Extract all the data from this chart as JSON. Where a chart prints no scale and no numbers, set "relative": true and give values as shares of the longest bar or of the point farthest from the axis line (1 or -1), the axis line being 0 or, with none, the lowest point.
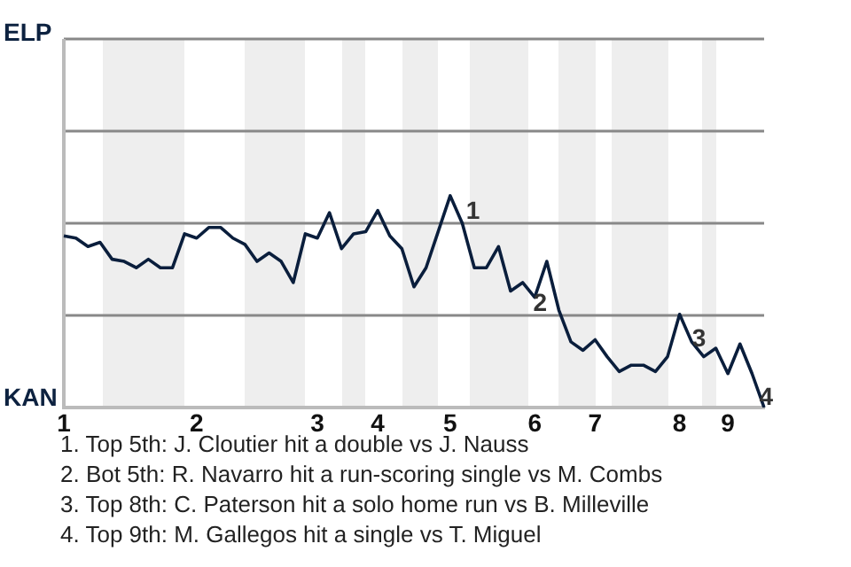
{
  "chart_data": {
    "type": "line",
    "relative": true,
    "categories": [
      "1",
      null,
      null,
      null,
      null,
      null,
      null,
      null,
      null,
      null,
      null,
      "2",
      null,
      null,
      null,
      null,
      null,
      null,
      null,
      null,
      null,
      "3",
      null,
      null,
      null,
      null,
      "4",
      null,
      null,
      null,
      null,
      null,
      "5",
      null,
      null,
      null,
      null,
      null,
      null,
      "6",
      null,
      null,
      null,
      null,
      "7",
      null,
      null,
      null,
      null,
      null,
      null,
      "8",
      null,
      null,
      null,
      "9",
      null,
      null,
      null
    ],
    "series": [
      {
        "color": "#0a1e3c",
        "values": [
          0.81,
          0.8,
          0.76,
          0.78,
          0.7,
          0.69,
          0.66,
          0.7,
          0.66,
          0.66,
          0.82,
          0.8,
          0.85,
          0.85,
          0.8,
          0.77,
          0.69,
          0.73,
          0.69,
          0.59,
          0.82,
          0.8,
          0.92,
          0.75,
          0.82,
          0.83,
          0.93,
          0.81,
          0.75,
          0.57,
          0.66,
          0.83,
          1,
          0.87,
          0.66,
          0.66,
          0.76,
          0.55,
          0.59,
          0.52,
          0.69,
          0.46,
          0.31,
          0.27,
          0.32,
          0.24,
          0.17,
          0.2,
          0.2,
          0.17,
          0.24,
          0.44,
          0.31,
          0.24,
          0.28,
          0.16,
          0.3,
          0.16,
          0
        ]
      }
    ],
    "ref_lines": [
      {
        "axis": "y",
        "value": 0.435,
        "color": "#888888"
      },
      {
        "axis": "y",
        "value": 0.87,
        "color": "#888888"
      },
      {
        "axis": "y",
        "value": 1.305,
        "color": "#888888"
      },
      {
        "axis": "y",
        "value": 1.74,
        "color": "#888888"
      }
    ],
    "annotations": [
      "ELP",
      "KAN",
      "1",
      "2",
      "3",
      "4",
      "1. Top 5th: J. Cloutier hit a double vs J. Nauss",
      "2. Bot 5th: R. Navarro hit a run-scoring single vs M. Combs",
      "3. Top 8th: C. Paterson hit a solo home run vs B. Milleville",
      "4. Top 9th: M. Gallegos hit a single vs T. Miguel"
    ]
  }
}
